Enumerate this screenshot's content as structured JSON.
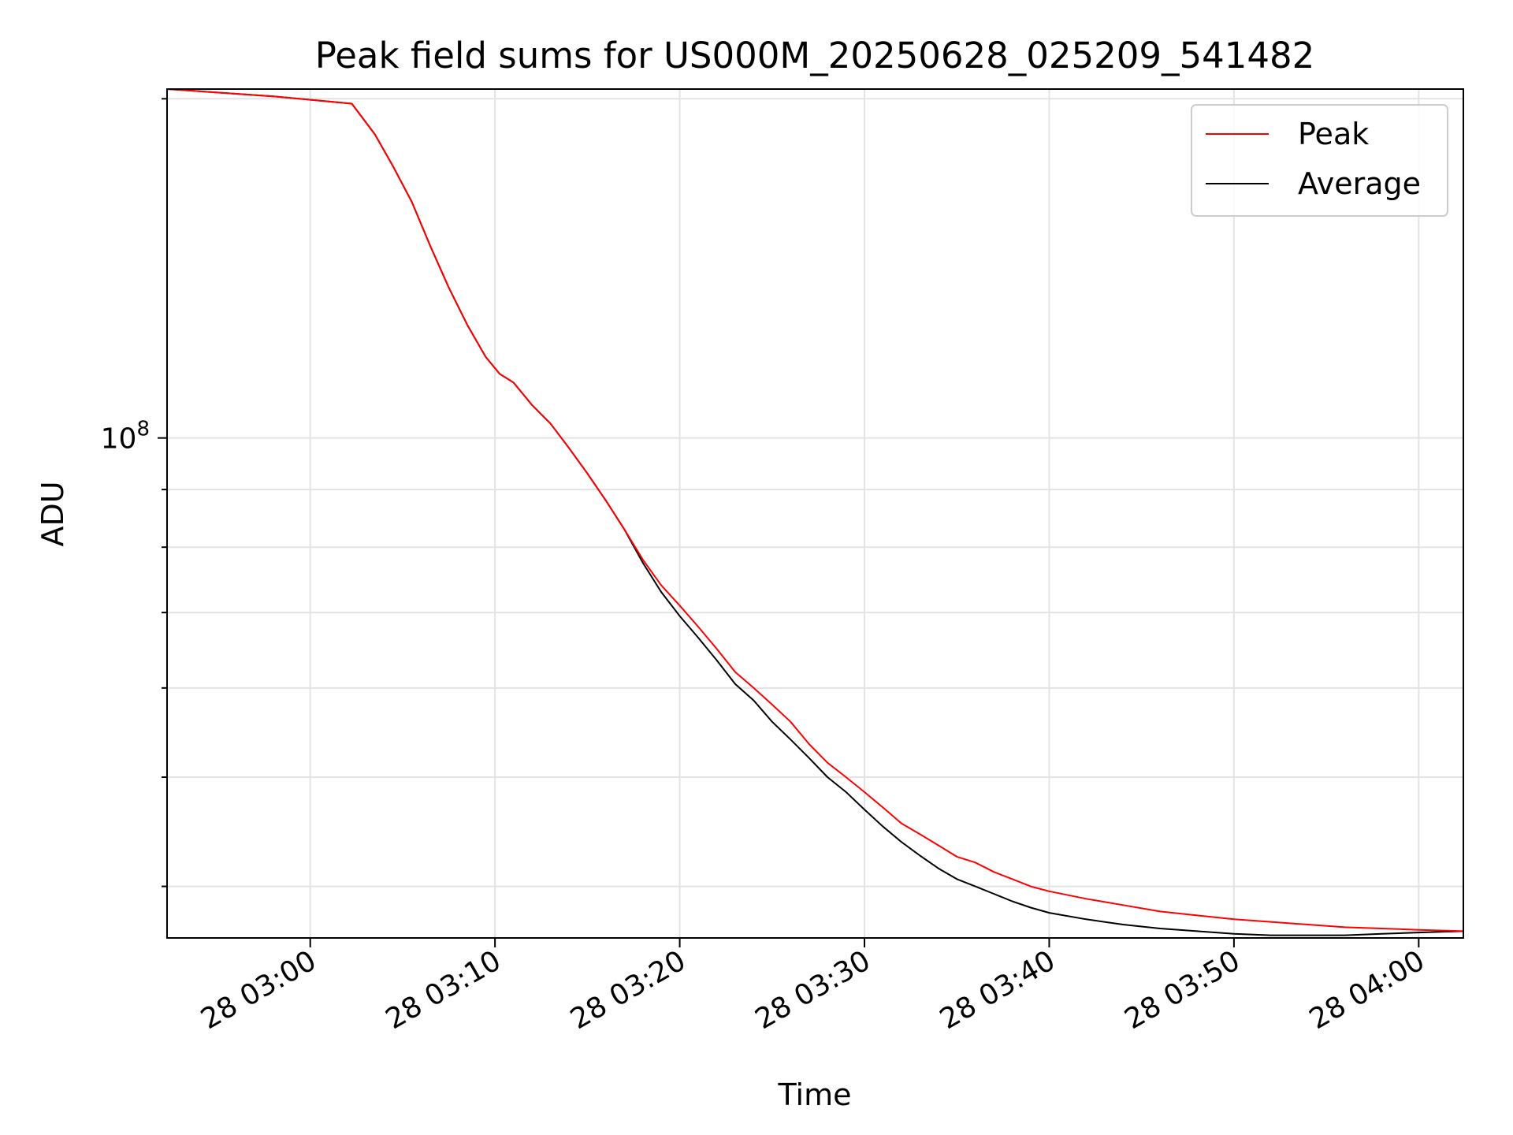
{
  "chart_data": {
    "type": "line",
    "title": "Peak field sums for US000M_20250628_025209_541482",
    "xlabel": "Time",
    "ylabel": "ADU",
    "x_ticks": [
      {
        "t": "03:00",
        "label": "28 03:00"
      },
      {
        "t": "03:10",
        "label": "28 03:10"
      },
      {
        "t": "03:20",
        "label": "28 03:20"
      },
      {
        "t": "03:30",
        "label": "28 03:30"
      },
      {
        "t": "03:40",
        "label": "28 03:40"
      },
      {
        "t": "03:50",
        "label": "28 03:50"
      },
      {
        "t": "04:00",
        "label": "28 04:00"
      }
    ],
    "xlim": [
      "02:52:15",
      "04:02:25"
    ],
    "y_scale": "log",
    "ylim": [
      36000000.0,
      204000000.0
    ],
    "y_major_ticks": [
      {
        "value": 100000000.0,
        "label_base": "10",
        "label_exp": "8"
      }
    ],
    "y_minor_ticks": [
      40000000.0,
      50000000.0,
      60000000.0,
      70000000.0,
      80000000.0,
      90000000.0,
      200000000.0
    ],
    "grid": true,
    "legend_position": "upper right",
    "series": [
      {
        "name": "Peak",
        "color": "#ff0000",
        "points": [
          [
            "02:52:15",
            204000000.0
          ],
          [
            "02:58:00",
            201000000.0
          ],
          [
            "03:02:15",
            198000000.0
          ],
          [
            "03:03:30",
            186000000.0
          ],
          [
            "03:04:30",
            174000000.0
          ],
          [
            "03:05:30",
            162000000.0
          ],
          [
            "03:06:30",
            148000000.0
          ],
          [
            "03:07:30",
            136000000.0
          ],
          [
            "03:08:30",
            126000000.0
          ],
          [
            "03:09:30",
            118000000.0
          ],
          [
            "03:10:15",
            114000000.0
          ],
          [
            "03:11:00",
            112000000.0
          ],
          [
            "03:12:00",
            107000000.0
          ],
          [
            "03:13:00",
            103000000.0
          ],
          [
            "03:14:00",
            98000000.0
          ],
          [
            "03:15:00",
            93000000.0
          ],
          [
            "03:16:00",
            88000000.0
          ],
          [
            "03:17:00",
            83000000.0
          ],
          [
            "03:18:00",
            78000000.0
          ],
          [
            "03:19:00",
            74000000.0
          ],
          [
            "03:20:00",
            71000000.0
          ],
          [
            "03:21:00",
            68000000.0
          ],
          [
            "03:22:00",
            65000000.0
          ],
          [
            "03:23:00",
            62000000.0
          ],
          [
            "03:24:00",
            60000000.0
          ],
          [
            "03:25:00",
            58000000.0
          ],
          [
            "03:26:00",
            56000000.0
          ],
          [
            "03:27:00",
            53500000.0
          ],
          [
            "03:28:00",
            51500000.0
          ],
          [
            "03:29:00",
            50000000.0
          ],
          [
            "03:30:00",
            48500000.0
          ],
          [
            "03:31:00",
            47000000.0
          ],
          [
            "03:32:00",
            45500000.0
          ],
          [
            "03:33:00",
            44500000.0
          ],
          [
            "03:34:00",
            43500000.0
          ],
          [
            "03:35:00",
            42500000.0
          ],
          [
            "03:36:00",
            42000000.0
          ],
          [
            "03:37:00",
            41200000.0
          ],
          [
            "03:38:00",
            40600000.0
          ],
          [
            "03:39:00",
            40000000.0
          ],
          [
            "03:40:00",
            39600000.0
          ],
          [
            "03:42:00",
            39000000.0
          ],
          [
            "03:44:00",
            38500000.0
          ],
          [
            "03:46:00",
            38000000.0
          ],
          [
            "03:48:00",
            37700000.0
          ],
          [
            "03:50:00",
            37400000.0
          ],
          [
            "03:52:00",
            37200000.0
          ],
          [
            "03:54:00",
            37000000.0
          ],
          [
            "03:56:00",
            36800000.0
          ],
          [
            "03:58:00",
            36700000.0
          ],
          [
            "04:00:00",
            36600000.0
          ],
          [
            "04:02:25",
            36500000.0
          ]
        ]
      },
      {
        "name": "Average",
        "color": "#000000",
        "points": [
          [
            "02:52:15",
            204000000.0
          ],
          [
            "02:58:00",
            201000000.0
          ],
          [
            "03:02:15",
            198000000.0
          ],
          [
            "03:03:30",
            186000000.0
          ],
          [
            "03:04:30",
            174000000.0
          ],
          [
            "03:05:30",
            162000000.0
          ],
          [
            "03:06:30",
            148000000.0
          ],
          [
            "03:07:30",
            136000000.0
          ],
          [
            "03:08:30",
            126000000.0
          ],
          [
            "03:09:30",
            118000000.0
          ],
          [
            "03:10:15",
            114000000.0
          ],
          [
            "03:11:00",
            112000000.0
          ],
          [
            "03:12:00",
            107000000.0
          ],
          [
            "03:13:00",
            103000000.0
          ],
          [
            "03:14:00",
            98000000.0
          ],
          [
            "03:15:00",
            93000000.0
          ],
          [
            "03:16:00",
            88000000.0
          ],
          [
            "03:17:00",
            83000000.0
          ],
          [
            "03:18:00",
            77500000.0
          ],
          [
            "03:19:00",
            73000000.0
          ],
          [
            "03:20:00",
            69500000.0
          ],
          [
            "03:21:00",
            66500000.0
          ],
          [
            "03:22:00",
            63500000.0
          ],
          [
            "03:23:00",
            60500000.0
          ],
          [
            "03:24:00",
            58500000.0
          ],
          [
            "03:25:00",
            56000000.0
          ],
          [
            "03:26:00",
            54000000.0
          ],
          [
            "03:27:00",
            52000000.0
          ],
          [
            "03:28:00",
            50000000.0
          ],
          [
            "03:29:00",
            48500000.0
          ],
          [
            "03:30:00",
            46800000.0
          ],
          [
            "03:31:00",
            45200000.0
          ],
          [
            "03:32:00",
            43800000.0
          ],
          [
            "03:33:00",
            42600000.0
          ],
          [
            "03:34:00",
            41500000.0
          ],
          [
            "03:35:00",
            40600000.0
          ],
          [
            "03:36:00",
            40000000.0
          ],
          [
            "03:37:00",
            39400000.0
          ],
          [
            "03:38:00",
            38800000.0
          ],
          [
            "03:39:00",
            38300000.0
          ],
          [
            "03:40:00",
            37900000.0
          ],
          [
            "03:42:00",
            37400000.0
          ],
          [
            "03:44:00",
            37000000.0
          ],
          [
            "03:46:00",
            36700000.0
          ],
          [
            "03:48:00",
            36500000.0
          ],
          [
            "03:50:00",
            36300000.0
          ],
          [
            "03:52:00",
            36200000.0
          ],
          [
            "03:54:00",
            36200000.0
          ],
          [
            "03:56:00",
            36200000.0
          ],
          [
            "03:58:00",
            36300000.0
          ],
          [
            "04:00:00",
            36400000.0
          ],
          [
            "04:02:25",
            36500000.0
          ]
        ]
      }
    ]
  }
}
